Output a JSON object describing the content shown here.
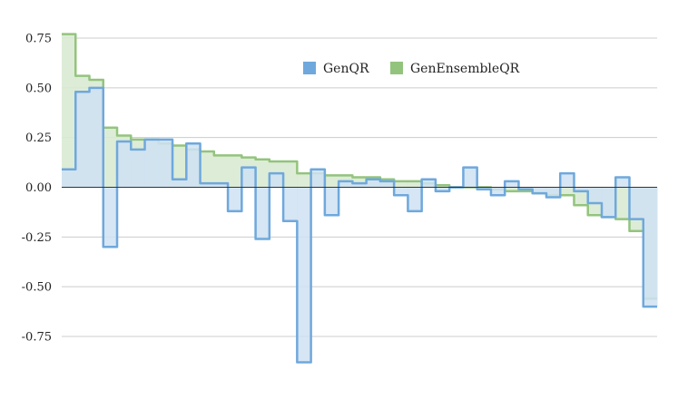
{
  "chart_data": {
    "type": "area",
    "step": true,
    "title": "",
    "xlabel": "",
    "ylabel": "",
    "ylim": [
      -1.0,
      0.8
    ],
    "yticks": [
      -0.75,
      -0.5,
      -0.25,
      0.0,
      0.25,
      0.5,
      0.75
    ],
    "ytick_labels": [
      "-0.75",
      "-0.50",
      "-0.25",
      "0.00",
      "0.25",
      "0.50",
      "0.75"
    ],
    "x_axis_labels": false,
    "grid": true,
    "legend": "top-right",
    "series": [
      {
        "name": "GenQR",
        "color": "#6fa8dc",
        "fill": "#cfe2f3",
        "values": [
          0.09,
          0.48,
          0.5,
          -0.3,
          0.23,
          0.19,
          0.24,
          0.24,
          0.04,
          0.22,
          0.02,
          0.02,
          -0.12,
          0.1,
          -0.26,
          0.07,
          -0.17,
          -0.88,
          0.09,
          -0.14,
          0.03,
          0.02,
          0.04,
          0.03,
          -0.04,
          -0.12,
          0.04,
          -0.02,
          0.0,
          0.1,
          -0.01,
          -0.04,
          0.03,
          -0.01,
          -0.03,
          -0.05,
          0.07,
          -0.02,
          -0.08,
          -0.15,
          0.05,
          -0.16,
          -0.6
        ]
      },
      {
        "name": "GenEnsembleQR",
        "color": "#93c47d",
        "fill": "#d9ead3",
        "values": [
          0.77,
          0.56,
          0.54,
          0.3,
          0.26,
          0.24,
          0.24,
          0.22,
          0.21,
          0.19,
          0.18,
          0.16,
          0.16,
          0.15,
          0.14,
          0.13,
          0.13,
          0.07,
          0.07,
          0.06,
          0.06,
          0.05,
          0.05,
          0.04,
          0.03,
          0.03,
          0.02,
          0.01,
          0.0,
          0.0,
          0.0,
          -0.01,
          -0.02,
          -0.02,
          -0.03,
          -0.04,
          -0.04,
          -0.09,
          -0.14,
          -0.15,
          -0.16,
          -0.22,
          -0.56
        ]
      }
    ]
  }
}
